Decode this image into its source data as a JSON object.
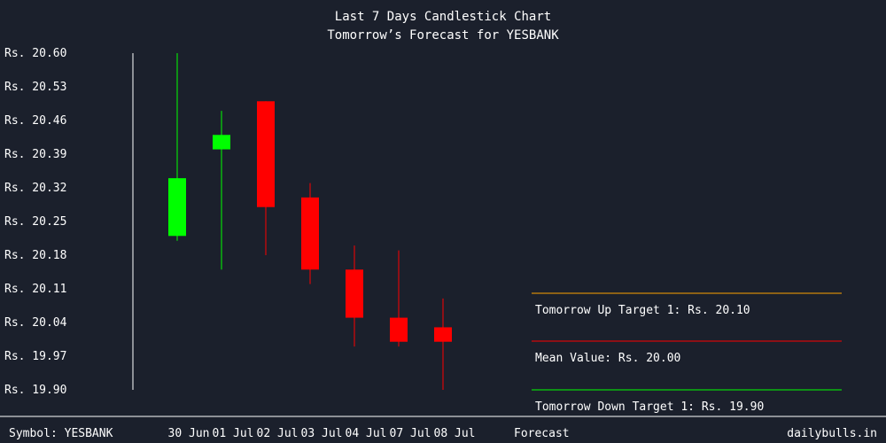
{
  "chart_data": {
    "type": "candlestick",
    "title": "Last 7 Days Candlestick Chart",
    "subtitle": "Tomorrow’s Forecast for YESBANK",
    "ylim": [
      19.9,
      20.6
    ],
    "y_ticks": [
      "Rs. 20.60",
      "Rs. 20.53",
      "Rs. 20.46",
      "Rs. 20.39",
      "Rs. 20.32",
      "Rs. 20.25",
      "Rs. 20.18",
      "Rs. 20.11",
      "Rs. 20.04",
      "Rs. 19.97",
      "Rs. 19.90"
    ],
    "y_tick_values": [
      20.6,
      20.53,
      20.46,
      20.39,
      20.32,
      20.25,
      20.18,
      20.11,
      20.04,
      19.97,
      19.9
    ],
    "candles": [
      {
        "date": "30 Jun",
        "open": 20.22,
        "close": 20.34,
        "high": 20.6,
        "low": 20.21,
        "color": "#00ff00"
      },
      {
        "date": "01 Jul",
        "open": 20.4,
        "close": 20.43,
        "high": 20.48,
        "low": 20.15,
        "color": "#00ff00"
      },
      {
        "date": "02 Jul",
        "open": 20.5,
        "close": 20.28,
        "high": 20.5,
        "low": 20.18,
        "color": "#ff0000"
      },
      {
        "date": "03 Jul",
        "open": 20.3,
        "close": 20.15,
        "high": 20.33,
        "low": 20.12,
        "color": "#ff0000"
      },
      {
        "date": "04 Jul",
        "open": 20.15,
        "close": 20.05,
        "high": 20.2,
        "low": 19.99,
        "color": "#ff0000"
      },
      {
        "date": "07 Jul",
        "open": 20.05,
        "close": 20.0,
        "high": 20.19,
        "low": 19.99,
        "color": "#ff0000"
      },
      {
        "date": "08 Jul",
        "open": 20.03,
        "close": 20.0,
        "high": 20.09,
        "low": 19.9,
        "color": "#ff0000"
      }
    ],
    "forecast": [
      {
        "label": "Tomorrow Up Target 1: Rs. 20.10",
        "value": 20.1,
        "color": "#ffa500"
      },
      {
        "label": "Mean Value: Rs. 20.00",
        "value": 20.0,
        "color": "#ff0000"
      },
      {
        "label": "Tomorrow Down Target 1: Rs. 19.90",
        "value": 19.9,
        "color": "#00ff00"
      }
    ]
  },
  "footer": {
    "symbol": "Symbol: YESBANK",
    "forecast_label": "Forecast",
    "brand": "dailybulls.in"
  },
  "colors": {
    "background": "#1b202c",
    "text": "#ffffff"
  }
}
